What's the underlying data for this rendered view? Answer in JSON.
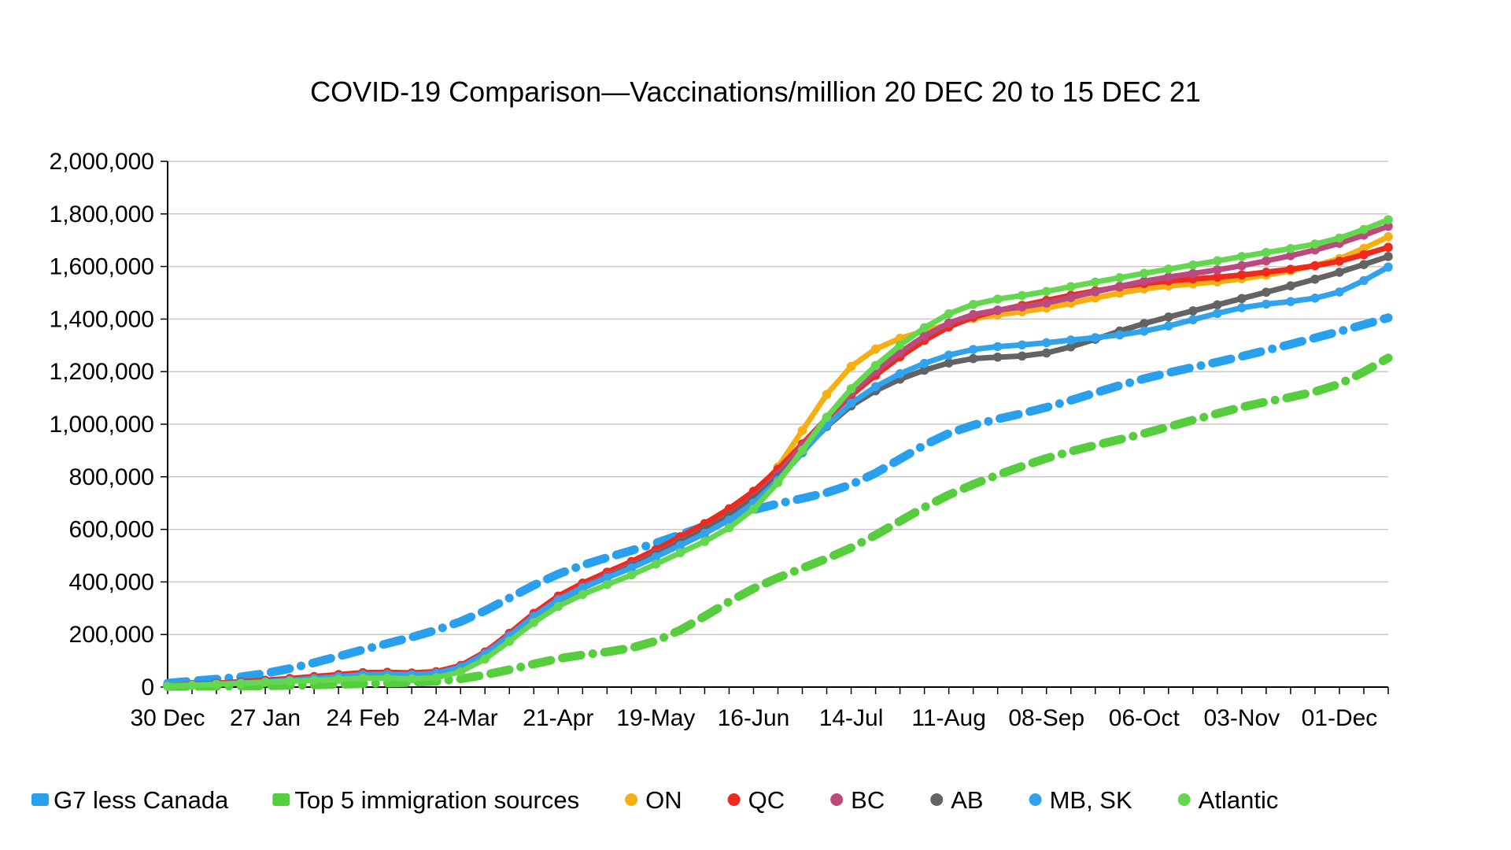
{
  "page": {
    "background": "#ffffff"
  },
  "chart_data": {
    "type": "line",
    "title": "COVID-19 Comparison—Vaccinations/million 20 DEC 20 to 15 DEC 21",
    "xlabel": "",
    "ylabel": "",
    "ylim": [
      0,
      2000000
    ],
    "y_tick_labels": [
      "0",
      "200,000",
      "400,000",
      "600,000",
      "800,000",
      "1,000,000",
      "1,200,000",
      "1,400,000",
      "1,600,000",
      "1,800,000",
      "2,000,000"
    ],
    "x_tick_labels": [
      "30 Dec",
      "27 Jan",
      "24 Feb",
      "24-Mar",
      "21-Apr",
      "19-May",
      "16-Jun",
      "14-Jul",
      "11-Aug",
      "08-Sep",
      "06-Oct",
      "03-Nov",
      "01-Dec"
    ],
    "x_tick_weeks": [
      0,
      4,
      8,
      12,
      16,
      20,
      24,
      28,
      32,
      36,
      40,
      44,
      48
    ],
    "total_weeks": 50,
    "end_date_label": "15 Dec",
    "grid_on": true,
    "grid_color": "#c9c9c9",
    "axis_color": "#000000",
    "legend_position": "bottom",
    "sample_weeks": [
      0,
      4,
      8,
      12,
      16,
      20,
      24,
      28,
      32,
      36,
      40,
      44,
      48,
      50
    ],
    "sample_dates": [
      "30 Dec",
      "27 Jan",
      "24 Feb",
      "24-Mar",
      "21-Apr",
      "19-May",
      "16-Jun",
      "14-Jul",
      "11-Aug",
      "08-Sep",
      "06-Oct",
      "03-Nov",
      "01-Dec",
      "15 Dec"
    ],
    "series": [
      {
        "name": "G7 less Canada",
        "color": "#29A0EE",
        "style": "dash-dot",
        "marker": "none",
        "values": [
          15000,
          52000,
          142000,
          249000,
          430000,
          548000,
          674000,
          770000,
          965000,
          1064000,
          1173000,
          1258000,
          1353000,
          1405000
        ]
      },
      {
        "name": "Top 5 immigration sources",
        "color": "#55CD3D",
        "style": "dash-dot",
        "marker": "none",
        "values": [
          2000,
          5000,
          13000,
          31000,
          108000,
          175000,
          375000,
          530000,
          731000,
          870000,
          965000,
          1065000,
          1153000,
          1252000
        ]
      },
      {
        "name": "ON",
        "color": "#F7AE11",
        "style": "solid",
        "marker": "circle",
        "values": [
          6000,
          20000,
          45000,
          77000,
          332000,
          505000,
          725000,
          1220000,
          1380000,
          1442000,
          1515000,
          1553000,
          1630000,
          1713000
        ]
      },
      {
        "name": "QC",
        "color": "#EF2A1C",
        "style": "solid",
        "marker": "circle",
        "values": [
          5000,
          26000,
          55000,
          82000,
          346000,
          523000,
          745000,
          1110000,
          1370000,
          1471000,
          1535000,
          1568000,
          1620000,
          1673000
        ]
      },
      {
        "name": "BC",
        "color": "#BC4A7E",
        "style": "solid",
        "marker": "circle",
        "values": [
          5000,
          21000,
          46000,
          78000,
          335000,
          508000,
          720000,
          1120000,
          1385000,
          1461000,
          1544000,
          1603000,
          1688000,
          1753000
        ]
      },
      {
        "name": "AB",
        "color": "#636363",
        "style": "solid",
        "marker": "circle",
        "values": [
          5000,
          20000,
          44000,
          76000,
          328000,
          503000,
          715000,
          1070000,
          1233000,
          1271000,
          1383000,
          1478000,
          1578000,
          1638000
        ]
      },
      {
        "name": "MB, SK",
        "color": "#31A2EC",
        "style": "solid",
        "marker": "circle",
        "values": [
          5000,
          20000,
          47000,
          75000,
          331000,
          495000,
          700000,
          1080000,
          1263000,
          1310000,
          1354000,
          1443000,
          1503000,
          1598000
        ]
      },
      {
        "name": "Atlantic",
        "color": "#63D84E",
        "style": "solid",
        "marker": "circle",
        "values": [
          3000,
          18000,
          34000,
          58000,
          307000,
          468000,
          677000,
          1135000,
          1420000,
          1505000,
          1574000,
          1638000,
          1708000,
          1778000
        ]
      }
    ]
  }
}
